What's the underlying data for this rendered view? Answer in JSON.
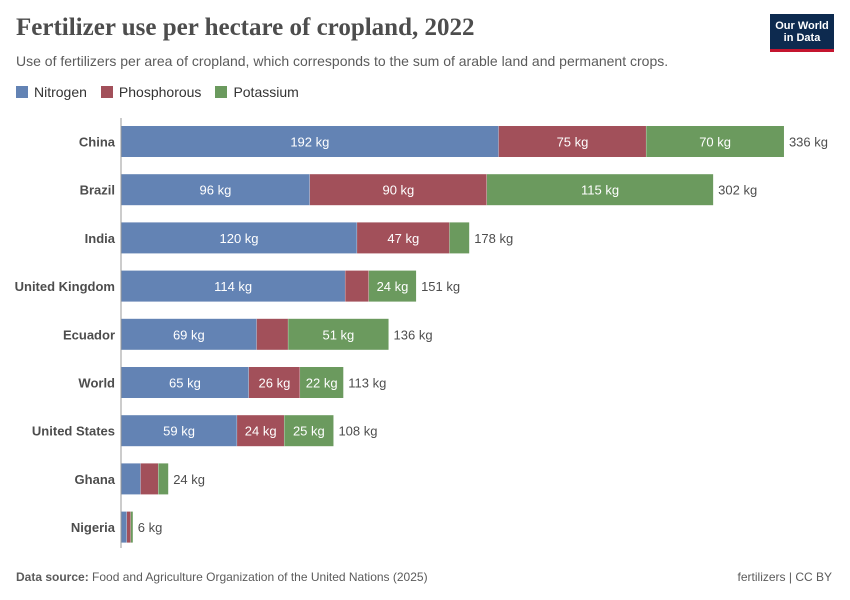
{
  "header": {
    "title": "Fertilizer use per hectare of cropland, 2022",
    "subtitle": "Use of fertilizers per area of cropland, which corresponds to the sum of arable land and permanent crops."
  },
  "logo": {
    "line1": "Our World",
    "line2": "in Data"
  },
  "legend": [
    {
      "label": "Nitrogen",
      "color": "#6383b4"
    },
    {
      "label": "Phosphorous",
      "color": "#a2505a"
    },
    {
      "label": "Potassium",
      "color": "#6b9a5e"
    }
  ],
  "footer": {
    "source_label": "Data source:",
    "source_text": "Food and Agriculture Organization of the United Nations (2025)",
    "right_text": "fertilizers | CC BY"
  },
  "chart_data": {
    "type": "bar",
    "orientation": "horizontal",
    "stacked": true,
    "title": "Fertilizer use per hectare of cropland, 2022",
    "unit": "kg",
    "categories": [
      "China",
      "Brazil",
      "India",
      "United Kingdom",
      "Ecuador",
      "World",
      "United States",
      "Ghana",
      "Nigeria"
    ],
    "series": [
      {
        "name": "Nitrogen",
        "color": "#6383b4",
        "values": [
          192,
          96,
          120,
          114,
          69,
          65,
          59,
          10,
          3
        ],
        "labels": [
          "192 kg",
          "96 kg",
          "120 kg",
          "114 kg",
          "69 kg",
          "65 kg",
          "59 kg",
          "",
          ""
        ]
      },
      {
        "name": "Phosphorous",
        "color": "#a2505a",
        "values": [
          75,
          90,
          47,
          12,
          16,
          26,
          24,
          9,
          2
        ],
        "labels": [
          "75 kg",
          "90 kg",
          "47 kg",
          "",
          "",
          "26 kg",
          "24 kg",
          "",
          ""
        ]
      },
      {
        "name": "Potassium",
        "color": "#6b9a5e",
        "values": [
          70,
          115,
          10,
          24,
          51,
          22,
          25,
          5,
          1
        ],
        "labels": [
          "70 kg",
          "115 kg",
          "",
          "24 kg",
          "51 kg",
          "22 kg",
          "25 kg",
          "",
          ""
        ]
      }
    ],
    "totals": [
      336,
      302,
      178,
      151,
      136,
      113,
      108,
      24,
      6
    ],
    "total_labels": [
      "336 kg",
      "302 kg",
      "178 kg",
      "151 kg",
      "136 kg",
      "113 kg",
      "108 kg",
      "24 kg",
      "6 kg"
    ],
    "xlim": [
      0,
      336
    ]
  }
}
